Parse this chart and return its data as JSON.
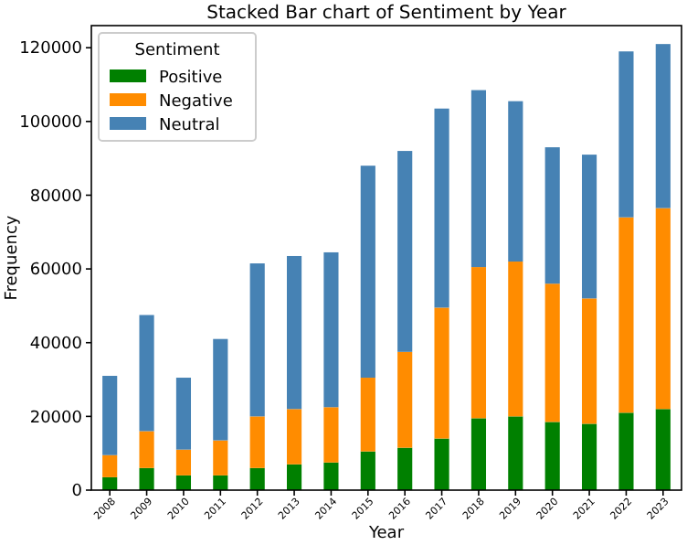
{
  "chart_data": {
    "type": "bar",
    "title": "Stacked Bar chart of Sentiment by Year",
    "xlabel": "Year",
    "ylabel": "Frequency",
    "legend_title": "Sentiment",
    "stacked": true,
    "legend": "top left",
    "grid": false,
    "categories": [
      "2008",
      "2009",
      "2010",
      "2011",
      "2012",
      "2013",
      "2014",
      "2015",
      "2016",
      "2017",
      "2018",
      "2019",
      "2020",
      "2021",
      "2022",
      "2023"
    ],
    "ylim": [
      0,
      126000
    ],
    "yticks": [
      0,
      20000,
      40000,
      60000,
      80000,
      100000,
      120000
    ],
    "series": [
      {
        "name": "Positive",
        "color": "#008000",
        "values": [
          3500,
          6000,
          4000,
          4000,
          6000,
          7000,
          7500,
          10500,
          11500,
          14000,
          19500,
          20000,
          18500,
          18000,
          21000,
          22000
        ]
      },
      {
        "name": "Negative",
        "color": "#ff8c00",
        "values": [
          6000,
          10000,
          7000,
          9500,
          14000,
          15000,
          15000,
          20000,
          26000,
          35500,
          41000,
          42000,
          37500,
          34000,
          53000,
          54500
        ]
      },
      {
        "name": "Neutral",
        "color": "#4682b4",
        "values": [
          21500,
          31500,
          19500,
          27500,
          41500,
          41500,
          42000,
          57500,
          54500,
          54000,
          48000,
          43500,
          37000,
          39000,
          45000,
          44500
        ]
      }
    ]
  }
}
